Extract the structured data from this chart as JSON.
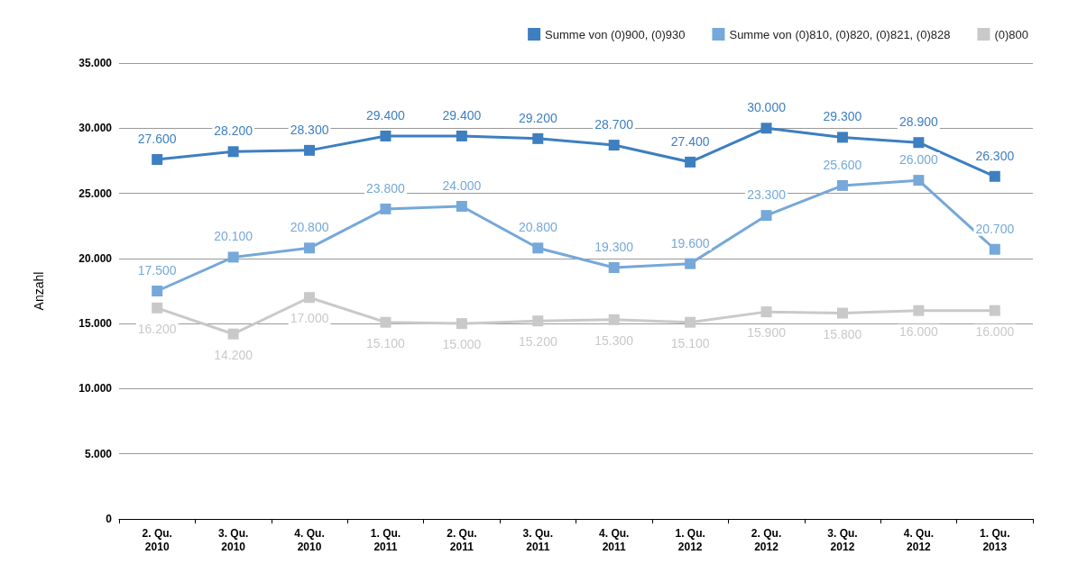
{
  "chart_data": {
    "type": "line",
    "ylabel": "Anzahl",
    "categories": [
      "2. Qu.\n2010",
      "3. Qu.\n2010",
      "4. Qu.\n2010",
      "1. Qu.\n2011",
      "2. Qu.\n2011",
      "3. Qu.\n2011",
      "4. Qu.\n2011",
      "1. Qu.\n2012",
      "2. Qu.\n2012",
      "3. Qu.\n2012",
      "4. Qu.\n2012",
      "1. Qu.\n2013"
    ],
    "series": [
      {
        "name": "Summe von (0)900, (0)930",
        "color": "#3d7fc1",
        "values": [
          27600,
          28200,
          28300,
          29400,
          29400,
          29200,
          28700,
          27400,
          30000,
          29300,
          28900,
          26300
        ],
        "value_labels": [
          "27.600",
          "28.200",
          "28.300",
          "29.400",
          "29.400",
          "29.200",
          "28.700",
          "27.400",
          "30.000",
          "29.300",
          "28.900",
          "26.300"
        ]
      },
      {
        "name": "Summe von (0)810, (0)820, (0)821, (0)828",
        "color": "#76a8d9",
        "values": [
          17500,
          20100,
          20800,
          23800,
          24000,
          20800,
          19300,
          19600,
          23300,
          25600,
          26000,
          20700
        ],
        "value_labels": [
          "17.500",
          "20.100",
          "20.800",
          "23.800",
          "24.000",
          "20.800",
          "19.300",
          "19.600",
          "23.300",
          "25.600",
          "26.000",
          "20.700"
        ]
      },
      {
        "name": "(0)800",
        "color": "#c9c9c9",
        "values": [
          16200,
          14200,
          17000,
          15100,
          15000,
          15200,
          15300,
          15100,
          15900,
          15800,
          16000,
          16000
        ],
        "value_labels": [
          "16.200",
          "14.200",
          "17.000",
          "15.100",
          "15.000",
          "15.200",
          "15.300",
          "15.100",
          "15.900",
          "15.800",
          "16.000",
          "16.000"
        ]
      }
    ],
    "ylim": [
      0,
      35000
    ],
    "yticks": [
      0,
      {
        "value": 5000,
        "label": "5.000"
      },
      {
        "value": 10000,
        "label": "10.000"
      },
      {
        "value": 15000,
        "label": "15.000"
      },
      {
        "value": 20000,
        "label": "20.000"
      },
      {
        "value": 25000,
        "label": "25.000"
      },
      {
        "value": 30000,
        "label": "30.000"
      },
      {
        "value": 35000,
        "label": "35.000"
      }
    ],
    "grid": "y",
    "legend": "top right",
    "marker": "square",
    "line_style": "solid"
  }
}
